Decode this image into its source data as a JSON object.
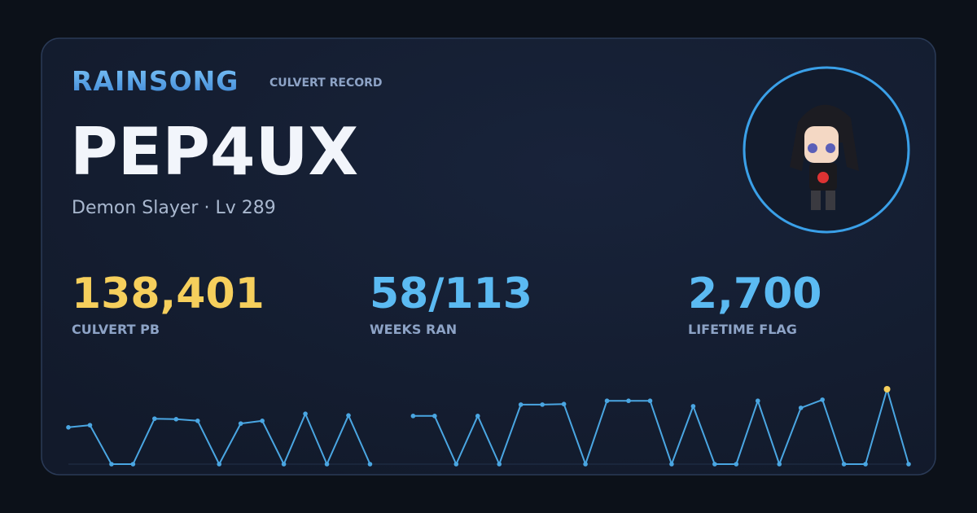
{
  "brand": "RAINSONG",
  "subtitle": "CULVERT RECORD",
  "name": "PEP4UX",
  "info": "Demon Slayer · Lv 289",
  "stats": [
    {
      "value": "138,401",
      "label": "CULVERT PB",
      "color": "#f6cf5c"
    },
    {
      "value": "58/113",
      "label": "WEEKS RAN",
      "color": "#5bbaf2"
    },
    {
      "value": "2,700",
      "label": "LIFETIME FLAG",
      "color": "#5bbaf2"
    }
  ],
  "sparkline": {
    "type": "line",
    "color": "#4aa6e2",
    "highlight_color": "#f6cf5c",
    "values": [
      68000,
      72000,
      0,
      0,
      84000,
      83000,
      80000,
      0,
      75000,
      80000,
      0,
      93000,
      0,
      90000,
      0,
      null,
      89000,
      89000,
      0,
      89000,
      0,
      110000,
      110000,
      111000,
      0,
      117000,
      117000,
      117000,
      0,
      107000,
      0,
      0,
      117000,
      0,
      104000,
      119000,
      0,
      0,
      138401,
      0
    ]
  }
}
